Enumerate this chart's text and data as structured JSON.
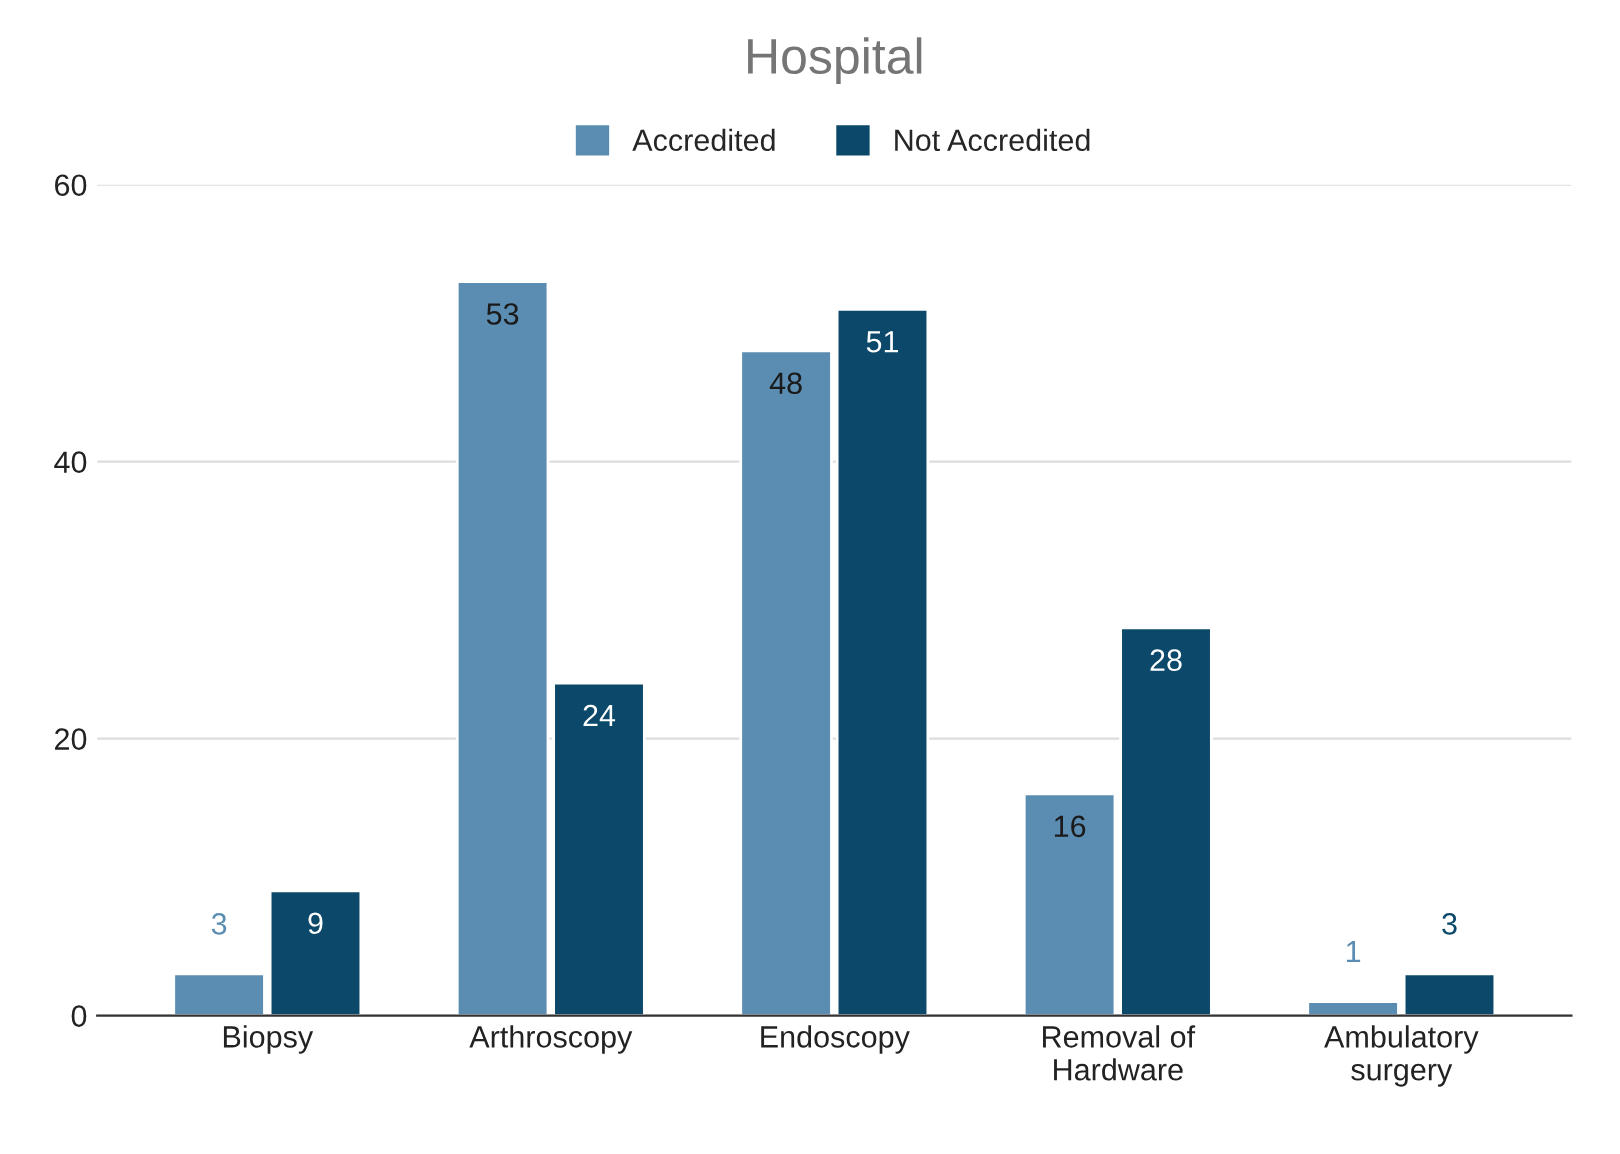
{
  "chart_data": {
    "type": "bar",
    "title": "Hospital",
    "categories": [
      "Biopsy",
      "Arthroscopy",
      "Endoscopy",
      "Removal of Hardware",
      "Ambulatory surgery"
    ],
    "series": [
      {
        "name": "Accredited",
        "color": "#5b8db2",
        "values": [
          3,
          53,
          48,
          16,
          1
        ]
      },
      {
        "name": "Not Accredited",
        "color": "#0b4869",
        "values": [
          9,
          24,
          51,
          28,
          3
        ]
      }
    ],
    "ylim": [
      0,
      60
    ],
    "yticks": [
      0,
      20,
      40,
      60
    ],
    "grid": "y",
    "legend": "top",
    "data_labels": true
  }
}
